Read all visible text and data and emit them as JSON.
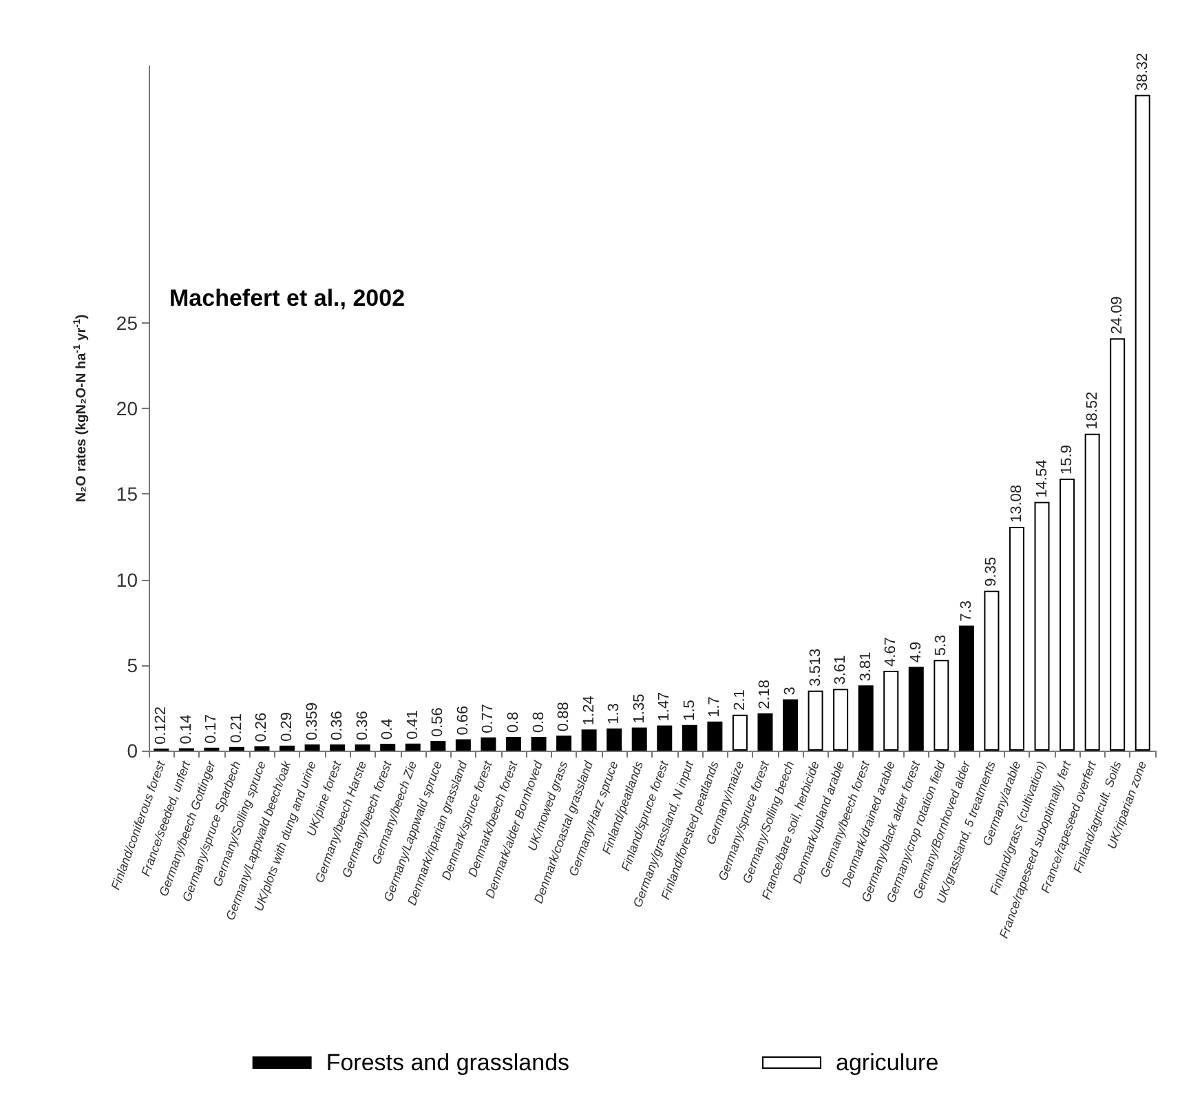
{
  "chart_data": {
    "type": "bar",
    "ylabel": "N₂O rates (kgN₂O-N ha$^{-1}$ yr$^{-1}$)",
    "annotations": [
      "Machefert et al., 2002"
    ],
    "categories": [
      "Finland/coniferous forest",
      "France/seeded, unfert",
      "Germany/beech Gottinger",
      "Germany/spruce Sparbech",
      "Germany/Solling spruce",
      "Germany/Lappwald beech/oak",
      "UK/plots with dung and urine",
      "UK/pine forest",
      "Germany/beech Harste",
      "Germany/beech forest",
      "Germany/beech Zie",
      "Germany/Lappwald spruce",
      "Denmark/riparian grassland",
      "Denmark/spruce forest",
      "Denmark/beech forest",
      "Denmark/alder Bornhoved",
      "UK/mowed grass",
      "Denmark/coastal grassland",
      "Germany/Harz spruce",
      "Finland/peatlands",
      "Finland/spruce forest",
      "Germany/grassland, N input",
      "Finland/forested peatlands",
      "Germany/maize",
      "Germany/spruce forest",
      "Germany/Solling beech",
      "France/bare soil, herbicide",
      "Denmark/upland arable",
      "Germany/beech forest",
      "Denmark/drained arable",
      "Germany/black alder forest",
      "Germany/crop rotation field",
      "Germany/Bornhoved alder",
      "UK/grassland, 5 treatments",
      "Germany/arable",
      "Finland/grass (cultivation)",
      "France/rapeseed suboptimally fert",
      "France/rapeseed overfert",
      "Finland/agricult. Soils",
      "UK/riparian zone"
    ],
    "series": [
      {
        "name": "Forests and grasslands",
        "color": "#000000",
        "values": [
          0.122,
          null,
          0.17,
          0.21,
          0.26,
          0.29,
          0.359,
          0.36,
          0.36,
          0.4,
          0.41,
          0.56,
          0.66,
          0.77,
          0.8,
          0.8,
          0.88,
          1.24,
          1.3,
          1.35,
          1.47,
          1.5,
          1.7,
          null,
          2.18,
          3,
          null,
          null,
          3.81,
          null,
          4.9,
          null,
          7.3,
          null,
          null,
          null,
          null,
          null,
          null,
          null
        ]
      },
      {
        "name": "agriculure",
        "color": "#ffffff",
        "values": [
          null,
          0.14,
          null,
          null,
          null,
          null,
          null,
          null,
          null,
          null,
          null,
          null,
          null,
          null,
          null,
          null,
          null,
          null,
          null,
          null,
          null,
          null,
          null,
          2.1,
          null,
          null,
          3.513,
          3.61,
          null,
          4.67,
          null,
          5.3,
          null,
          9.35,
          13.08,
          14.54,
          15.9,
          18.52,
          24.09,
          38.32
        ]
      }
    ],
    "ylim": [
      0,
      40
    ],
    "yticks": [
      0,
      5,
      10,
      15,
      20,
      25
    ],
    "grid": false,
    "legend": "bottom",
    "data_labels": true
  }
}
